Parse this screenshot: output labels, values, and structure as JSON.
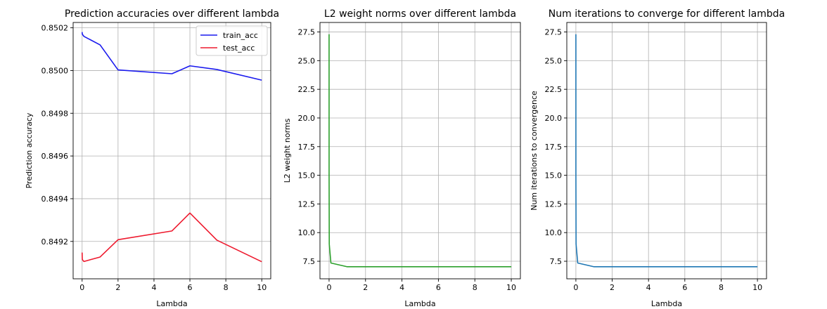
{
  "chart_data": [
    {
      "type": "line",
      "title": "Prediction accuracies over different lambda",
      "xlabel": "Lambda",
      "ylabel": "Prediction accuracy",
      "xlim": [
        -0.5,
        10.5
      ],
      "ylim": [
        0.849025,
        0.850225
      ],
      "xticks": [
        0,
        2,
        4,
        6,
        8,
        10
      ],
      "xtick_labels": [
        "0",
        "2",
        "4",
        "6",
        "8",
        "10"
      ],
      "yticks": [
        0.8492,
        0.8494,
        0.8496,
        0.8498,
        0.85,
        0.8502
      ],
      "ytick_labels": [
        "0.8492",
        "0.8494",
        "0.8496",
        "0.8498",
        "0.8500",
        "0.8502"
      ],
      "grid": true,
      "legend": "top-right",
      "series": [
        {
          "name": "train_acc",
          "color": "#1a1aee",
          "x": [
            0,
            0.01,
            0.1,
            1,
            2,
            5,
            6,
            7.5,
            10
          ],
          "y": [
            0.85018,
            0.85017,
            0.85016,
            0.85012,
            0.850003,
            0.849985,
            0.850022,
            0.850005,
            0.849955
          ]
        },
        {
          "name": "test_acc",
          "color": "#ee1a2e",
          "x": [
            0,
            0.01,
            0.1,
            1,
            2,
            5,
            6,
            7.5,
            10
          ],
          "y": [
            0.849148,
            0.849115,
            0.849106,
            0.849127,
            0.849208,
            0.849249,
            0.849333,
            0.849206,
            0.849105
          ]
        }
      ]
    },
    {
      "type": "line",
      "title": "L2 weight norms over different lambda",
      "xlabel": "Lambda",
      "ylabel": "L2 weight norms",
      "xlim": [
        -0.5,
        10.5
      ],
      "ylim": [
        5.97,
        28.33
      ],
      "xticks": [
        0,
        2,
        4,
        6,
        8,
        10
      ],
      "xtick_labels": [
        "0",
        "2",
        "4",
        "6",
        "8",
        "10"
      ],
      "yticks": [
        7.5,
        10,
        12.5,
        15,
        17.5,
        20,
        22.5,
        25,
        27.5
      ],
      "ytick_labels": [
        "7.5",
        "10.0",
        "12.5",
        "15.0",
        "17.5",
        "20.0",
        "22.5",
        "25.0",
        "27.5"
      ],
      "grid": true,
      "series": [
        {
          "color": "#2ca02c",
          "x": [
            0,
            0.001,
            0.01,
            0.1,
            1,
            2,
            5,
            6,
            7.5,
            10
          ],
          "y": [
            27.3,
            15.0,
            9.0,
            7.35,
            7.02,
            7.02,
            7.02,
            7.02,
            7.02,
            7.02
          ]
        }
      ]
    },
    {
      "type": "line",
      "title": "Num iterations to converge for different lambda",
      "xlabel": "Lambda",
      "ylabel": "Num iterations to convergence",
      "xlim": [
        -0.5,
        10.5
      ],
      "ylim": [
        5.97,
        28.33
      ],
      "xticks": [
        0,
        2,
        4,
        6,
        8,
        10
      ],
      "xtick_labels": [
        "0",
        "2",
        "4",
        "6",
        "8",
        "10"
      ],
      "yticks": [
        7.5,
        10,
        12.5,
        15,
        17.5,
        20,
        22.5,
        25,
        27.5
      ],
      "ytick_labels": [
        "7.5",
        "10.0",
        "12.5",
        "15.0",
        "17.5",
        "20.0",
        "22.5",
        "25.0",
        "27.5"
      ],
      "grid": true,
      "series": [
        {
          "color": "#1f77b4",
          "x": [
            0,
            0.001,
            0.01,
            0.1,
            1,
            2,
            5,
            6,
            7.5,
            10
          ],
          "y": [
            27.3,
            15.0,
            9.0,
            7.35,
            7.02,
            7.02,
            7.02,
            7.02,
            7.02,
            7.02
          ]
        }
      ]
    }
  ]
}
